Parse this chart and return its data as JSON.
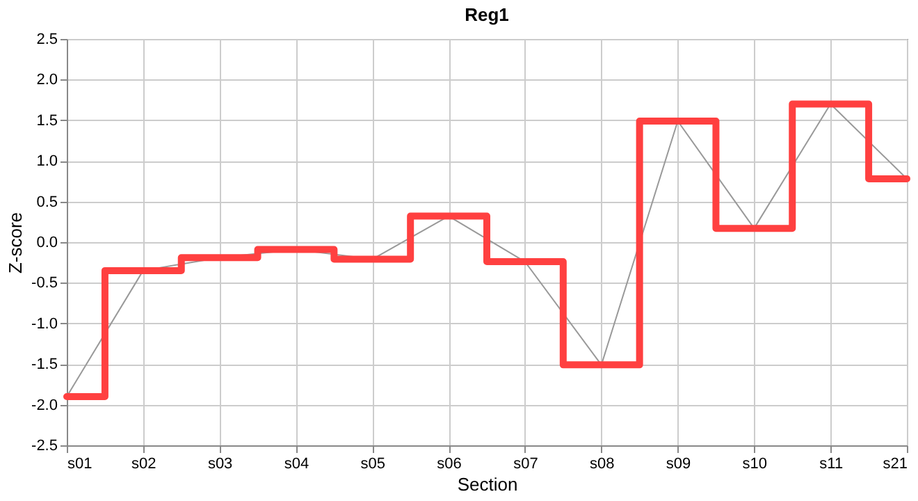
{
  "chart_data": {
    "type": "step",
    "title": "Reg1",
    "xlabel": "Section",
    "ylabel": "Z-score",
    "categories": [
      "s01",
      "s02",
      "s03",
      "s04",
      "s05",
      "s06",
      "s07",
      "s08",
      "s09",
      "s10",
      "s11",
      "s21"
    ],
    "series": [
      {
        "type": "line",
        "color": "#999999",
        "values": [
          -1.9,
          -0.35,
          -0.19,
          -0.09,
          -0.21,
          0.32,
          -0.24,
          -1.51,
          1.49,
          0.17,
          1.7,
          0.78
        ]
      },
      {
        "color": "#ff4040",
        "values": [
          -1.9,
          -0.35,
          -0.19,
          -0.09,
          -0.21,
          0.32,
          -0.24,
          -1.51,
          1.49,
          0.17,
          1.7,
          0.78
        ]
      }
    ],
    "ylim": [
      -2.5,
      2.5
    ],
    "yticks": [
      {
        "value": -2.5,
        "label": "-2.5"
      },
      {
        "value": -2,
        "label": "-2.0"
      },
      {
        "value": -1.5,
        "label": "-1.5"
      },
      {
        "value": -1,
        "label": "-1.0"
      },
      {
        "value": -0.5,
        "label": "-0.5"
      },
      {
        "value": 0,
        "label": "0.0"
      },
      {
        "value": 0.5,
        "label": "0.5"
      },
      {
        "value": 1,
        "label": "1.0"
      },
      {
        "value": 1.5,
        "label": "1.5"
      },
      {
        "value": 2,
        "label": "2.0"
      },
      {
        "value": 2.5,
        "label": "2.5"
      }
    ],
    "grid": true
  }
}
